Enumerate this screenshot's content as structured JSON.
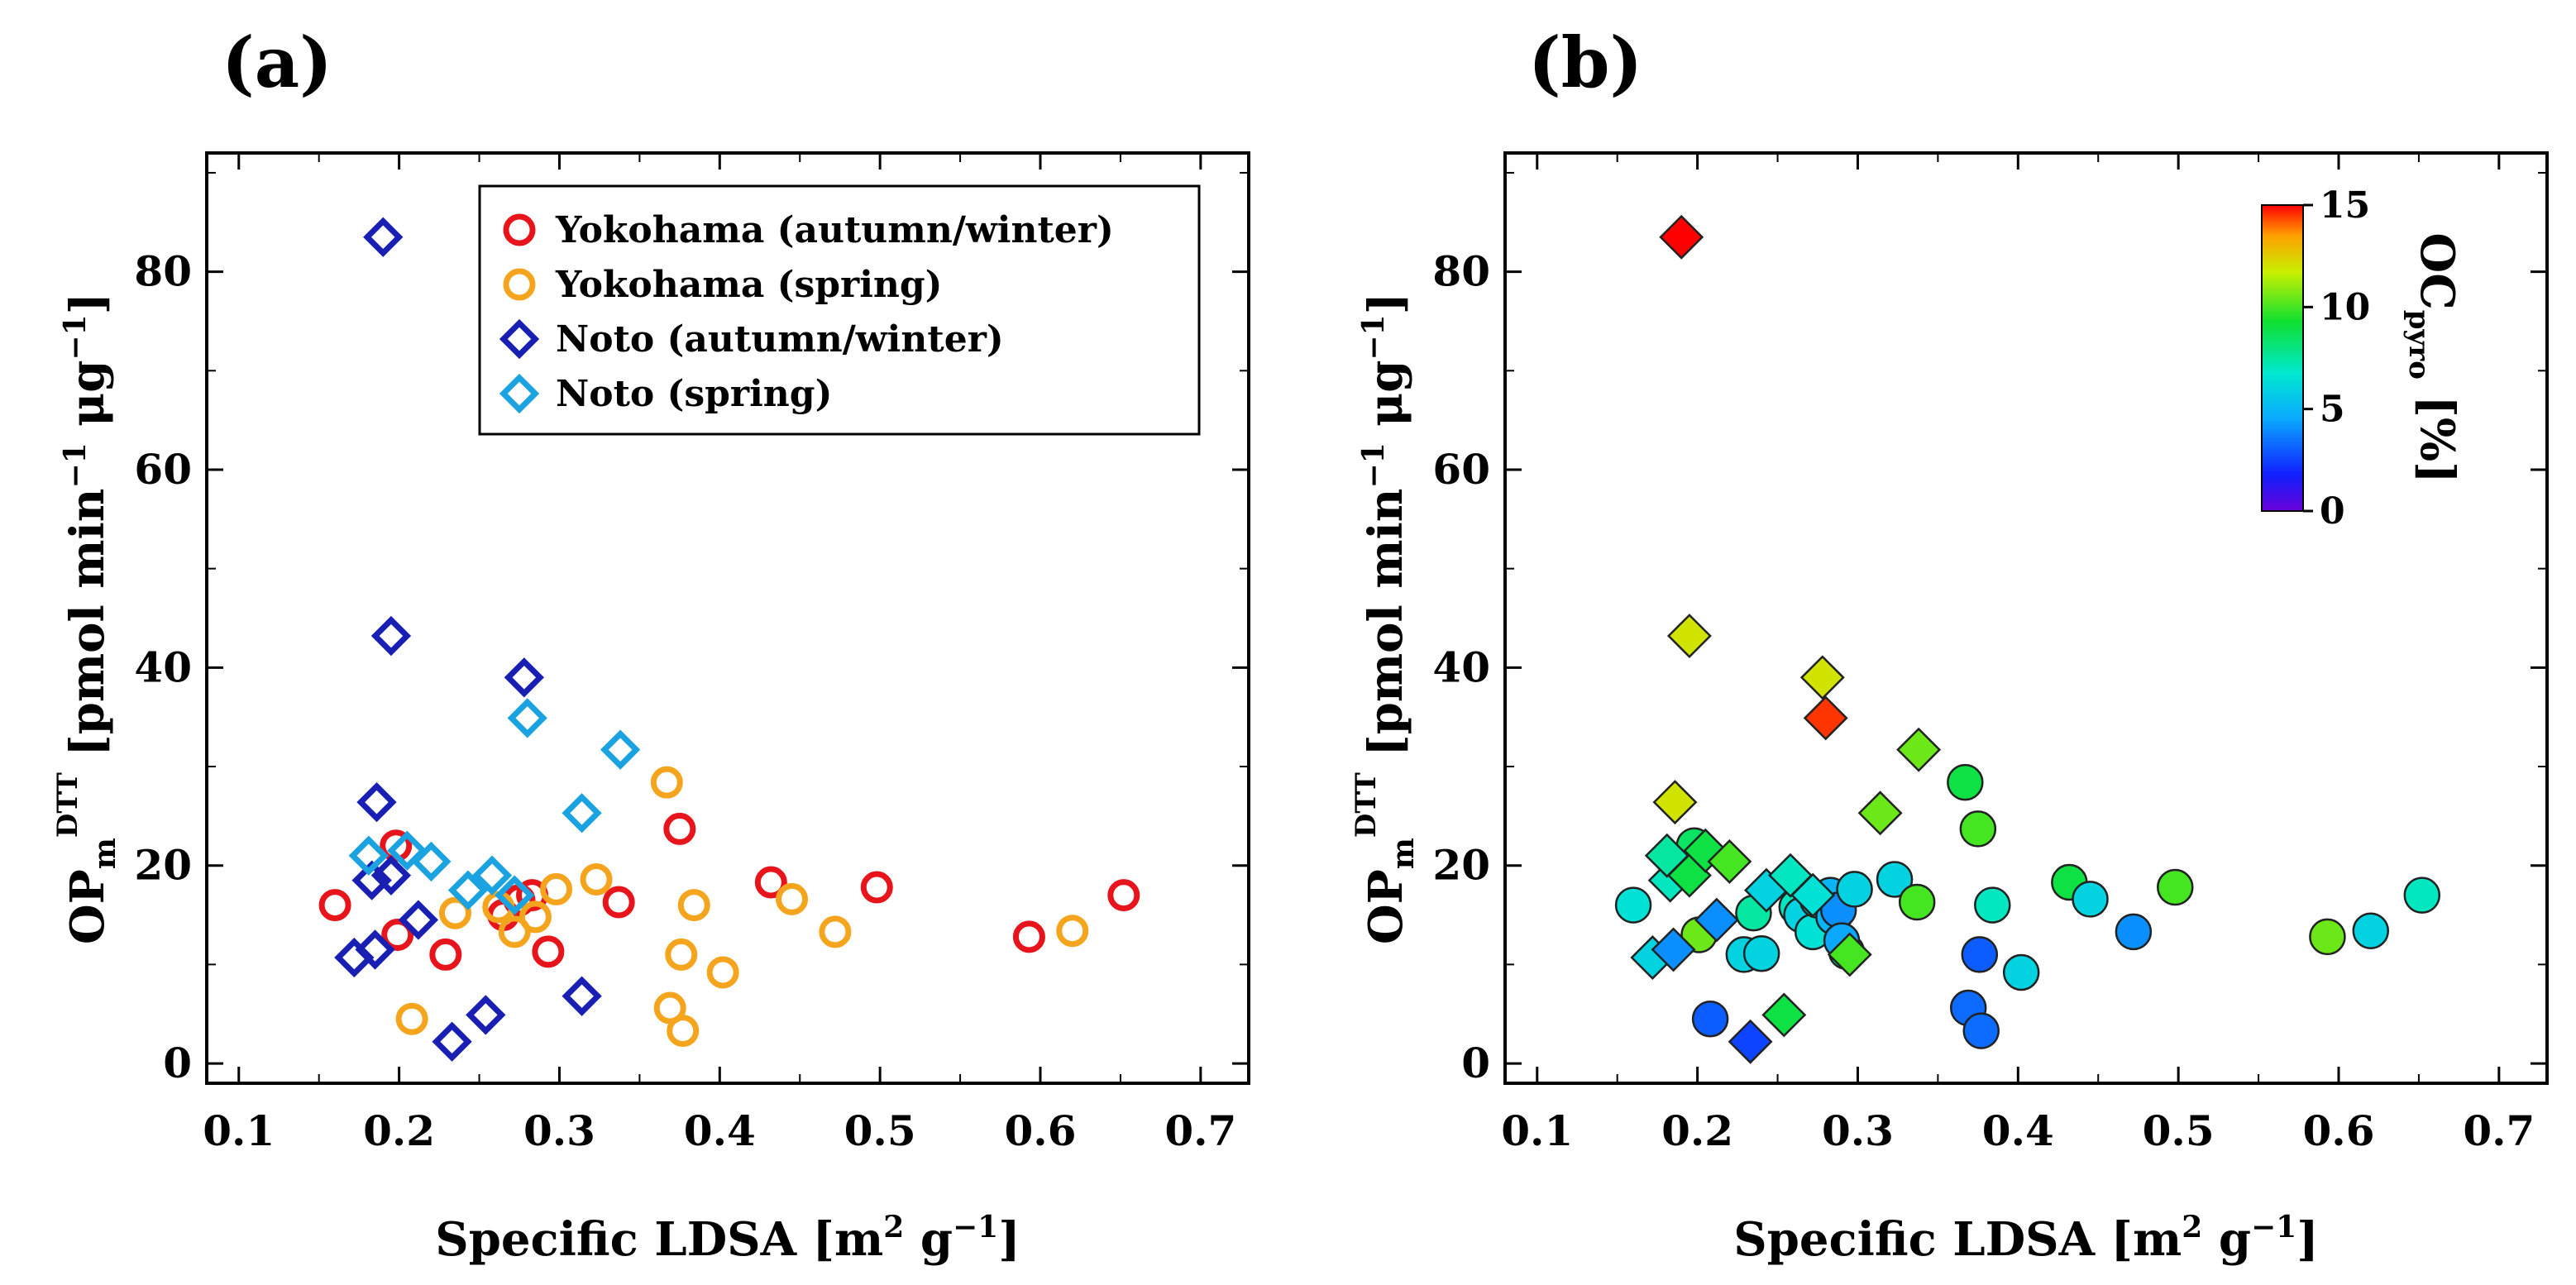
{
  "panels": [
    {
      "label": "(a)",
      "xlabel": "Specific LDSA [m",
      "xlabel_exp": "2",
      "xlabel_unit": "g",
      "xlabel_unit_exp": "−1",
      "xlabel_close": "]"
    },
    {
      "label": "(b)",
      "xlabel": "Specific LDSA [m",
      "xlabel_exp": "2",
      "xlabel_unit": "g",
      "xlabel_unit_exp": "−1",
      "xlabel_close": "]"
    }
  ],
  "ylabel": {
    "base": "OP",
    "sub": "m",
    "sup": "DTT",
    "bracket": "[pmol min",
    "exp1": "−1",
    "unit": "μg",
    "exp2": "−1",
    "close": "]"
  },
  "colorbar": {
    "title_base": "OC",
    "title_sub": "pyro",
    "title_unit": "[%]",
    "ticks": [
      "0",
      "5",
      "10",
      "15"
    ],
    "range": [
      0,
      15
    ]
  },
  "chart_data": [
    {
      "type": "scatter",
      "title": "(a)",
      "xlabel": "Specific LDSA [m2 g−1]",
      "ylabel": "OPm DTT [pmol min−1 μg−1]",
      "xlim": [
        0.08,
        0.73
      ],
      "ylim": [
        -2,
        92
      ],
      "xticks": [
        "0.1",
        "0.2",
        "0.3",
        "0.4",
        "0.5",
        "0.6",
        "0.7"
      ],
      "yticks": [
        "0",
        "20",
        "40",
        "60",
        "80"
      ],
      "legend_position": "top-right",
      "series": [
        {
          "name": "Yokohama (autumn/winter)",
          "marker": "circle",
          "color": "#e8141c",
          "points": [
            [
              0.16,
              16
            ],
            [
              0.198,
              22
            ],
            [
              0.199,
              13
            ],
            [
              0.229,
              11
            ],
            [
              0.265,
              15
            ],
            [
              0.275,
              16.5
            ],
            [
              0.283,
              17
            ],
            [
              0.293,
              11.3
            ],
            [
              0.337,
              16.3
            ],
            [
              0.375,
              23.7
            ],
            [
              0.432,
              18.3
            ],
            [
              0.498,
              17.8
            ],
            [
              0.593,
              12.8
            ],
            [
              0.652,
              17
            ]
          ]
        },
        {
          "name": "Yokohama (spring)",
          "marker": "circle",
          "color": "#f5a51d",
          "points": [
            [
              0.208,
              4.5
            ],
            [
              0.235,
              15.2
            ],
            [
              0.262,
              15.8
            ],
            [
              0.272,
              13.3
            ],
            [
              0.285,
              14.8
            ],
            [
              0.298,
              17.6
            ],
            [
              0.323,
              18.6
            ],
            [
              0.367,
              28.4
            ],
            [
              0.369,
              5.6
            ],
            [
              0.376,
              11
            ],
            [
              0.377,
              3.3
            ],
            [
              0.384,
              16
            ],
            [
              0.402,
              9.2
            ],
            [
              0.445,
              16.6
            ],
            [
              0.472,
              13.3
            ],
            [
              0.62,
              13.4
            ]
          ]
        },
        {
          "name": "Noto (autumn/winter)",
          "marker": "diamond",
          "color": "#1a1fb4",
          "points": [
            [
              0.19,
              83.5
            ],
            [
              0.195,
              43.2
            ],
            [
              0.186,
              26.4
            ],
            [
              0.278,
              39
            ],
            [
              0.172,
              10.7
            ],
            [
              0.185,
              11.5
            ],
            [
              0.183,
              18.5
            ],
            [
              0.195,
              19
            ],
            [
              0.212,
              14.5
            ],
            [
              0.233,
              2.2
            ],
            [
              0.254,
              4.9
            ],
            [
              0.314,
              6.8
            ]
          ]
        },
        {
          "name": "Noto (spring)",
          "marker": "diamond",
          "color": "#1aa3e0",
          "points": [
            [
              0.28,
              34.9
            ],
            [
              0.338,
              31.7
            ],
            [
              0.314,
              25.3
            ],
            [
              0.181,
              21
            ],
            [
              0.205,
              21.5
            ],
            [
              0.22,
              20.4
            ],
            [
              0.243,
              17.5
            ],
            [
              0.258,
              19
            ],
            [
              0.272,
              17
            ]
          ]
        }
      ]
    },
    {
      "type": "scatter",
      "title": "(b)",
      "xlabel": "Specific LDSA [m2 g−1]",
      "ylabel": "OPm DTT [pmol min−1 μg−1]",
      "xlim": [
        0.08,
        0.73
      ],
      "ylim": [
        -2,
        92
      ],
      "xticks": [
        "0.1",
        "0.2",
        "0.3",
        "0.4",
        "0.5",
        "0.6",
        "0.7"
      ],
      "yticks": [
        "0",
        "20",
        "40",
        "60",
        "80"
      ],
      "color_variable": "OCpyro [%]",
      "color_range": [
        0,
        15
      ],
      "series": [
        {
          "name": "Yokohama",
          "marker": "circle",
          "points": [
            [
              0.16,
              16,
              6.5
            ],
            [
              0.198,
              22,
              8.5
            ],
            [
              0.201,
              13,
              10.5
            ],
            [
              0.208,
              4.5,
              3
            ],
            [
              0.229,
              11,
              6
            ],
            [
              0.235,
              15.2,
              7.5
            ],
            [
              0.262,
              15.8,
              7
            ],
            [
              0.265,
              15,
              6
            ],
            [
              0.272,
              13.3,
              6.5
            ],
            [
              0.275,
              16.5,
              6
            ],
            [
              0.283,
              17,
              5
            ],
            [
              0.285,
              14.8,
              5
            ],
            [
              0.288,
              15.5,
              4
            ],
            [
              0.293,
              11.3,
              7.5
            ],
            [
              0.298,
              17.6,
              6
            ],
            [
              0.323,
              18.6,
              6
            ],
            [
              0.337,
              16.3,
              10
            ],
            [
              0.367,
              28.4,
              9
            ],
            [
              0.369,
              5.6,
              3.3
            ],
            [
              0.375,
              23.7,
              10
            ],
            [
              0.376,
              11,
              3
            ],
            [
              0.377,
              3.3,
              3.3
            ],
            [
              0.384,
              16,
              7
            ],
            [
              0.402,
              9.2,
              6
            ],
            [
              0.432,
              18.3,
              9
            ],
            [
              0.445,
              16.6,
              6
            ],
            [
              0.472,
              13.3,
              4
            ],
            [
              0.498,
              17.8,
              10
            ],
            [
              0.593,
              12.8,
              10.5
            ],
            [
              0.62,
              13.4,
              6
            ],
            [
              0.652,
              17,
              7
            ],
            [
              0.29,
              12.4,
              4.5
            ],
            [
              0.24,
              11.1,
              6
            ]
          ]
        },
        {
          "name": "Noto",
          "marker": "diamond",
          "points": [
            [
              0.19,
              83.5,
              15
            ],
            [
              0.195,
              43.2,
              12
            ],
            [
              0.186,
              26.4,
              12
            ],
            [
              0.278,
              39,
              12
            ],
            [
              0.28,
              34.9,
              14.5
            ],
            [
              0.338,
              31.7,
              10.5
            ],
            [
              0.314,
              25.3,
              10.5
            ],
            [
              0.172,
              10.7,
              6
            ],
            [
              0.185,
              11.5,
              4
            ],
            [
              0.183,
              18.5,
              7
            ],
            [
              0.195,
              19,
              9
            ],
            [
              0.181,
              21,
              7.5
            ],
            [
              0.205,
              21.5,
              9
            ],
            [
              0.212,
              14.5,
              4
            ],
            [
              0.22,
              20.4,
              10
            ],
            [
              0.233,
              2.2,
              2.5
            ],
            [
              0.243,
              17.5,
              6
            ],
            [
              0.254,
              4.9,
              9
            ],
            [
              0.258,
              19,
              7
            ],
            [
              0.272,
              17,
              6.5
            ],
            [
              0.295,
              11,
              10
            ]
          ]
        }
      ]
    }
  ]
}
